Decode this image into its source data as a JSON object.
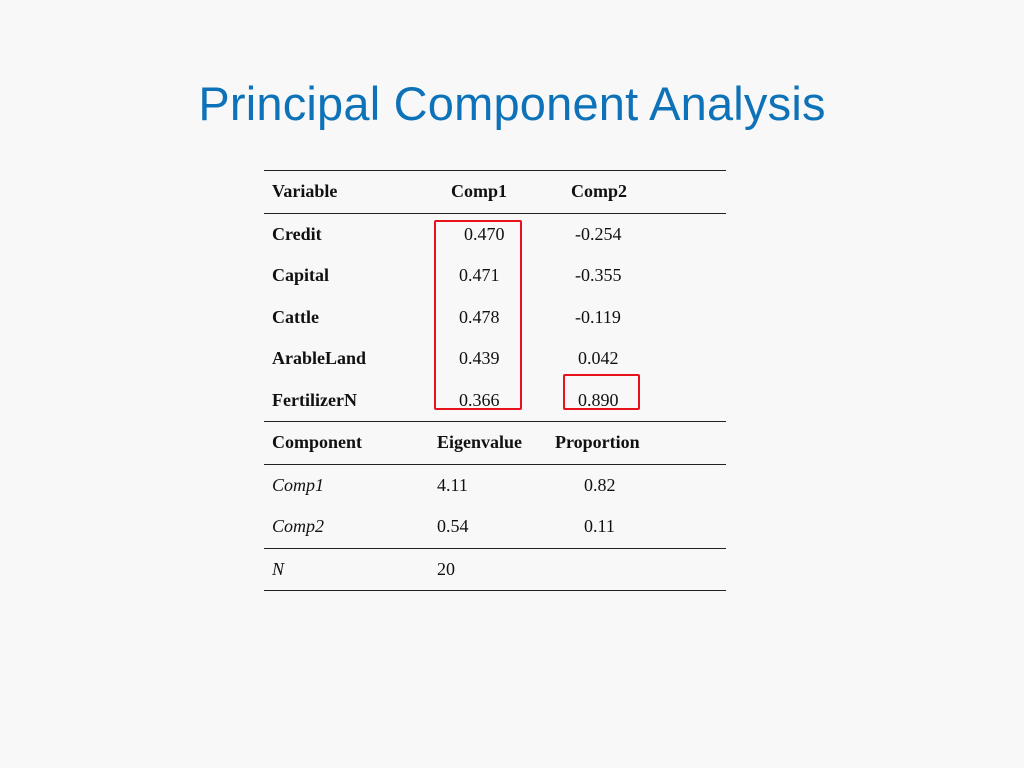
{
  "title": "Principal Component Analysis",
  "loadings": {
    "headers": {
      "variable": "Variable",
      "comp1": "Comp1",
      "comp2": "Comp2"
    },
    "rows": [
      {
        "variable": "Credit",
        "comp1": "0.470",
        "comp2": "-0.254"
      },
      {
        "variable": "Capital",
        "comp1": "0.471",
        "comp2": "-0.355"
      },
      {
        "variable": "Cattle",
        "comp1": "0.478",
        "comp2": "-0.119"
      },
      {
        "variable": "ArableLand",
        "comp1": "0.439",
        "comp2": "0.042"
      },
      {
        "variable": "FertilizerN",
        "comp1": "0.366",
        "comp2": "0.890"
      }
    ]
  },
  "eigen": {
    "headers": {
      "component": "Component",
      "eigenvalue": "Eigenvalue",
      "proportion": "Proportion"
    },
    "rows": [
      {
        "component": "Comp1",
        "eigenvalue": "4.11",
        "proportion": "0.82"
      },
      {
        "component": "Comp2",
        "eigenvalue": "0.54",
        "proportion": "0.11"
      }
    ]
  },
  "n_row": {
    "label": "N",
    "value": "20"
  },
  "highlight_color": "#e8121c",
  "title_color": "#0e72b8"
}
